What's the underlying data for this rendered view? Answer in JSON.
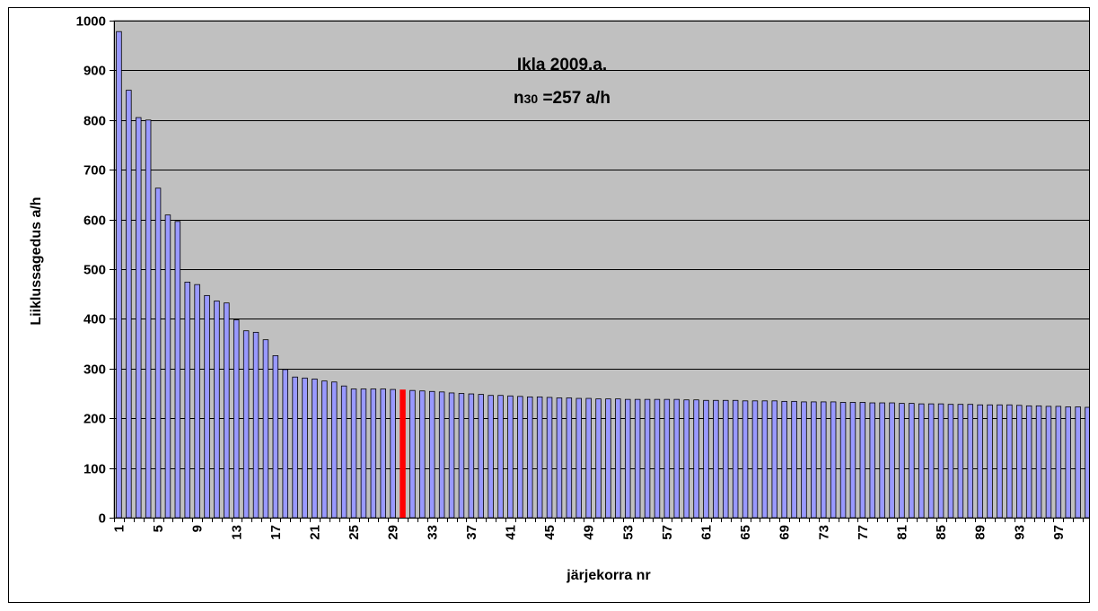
{
  "chart_data": {
    "type": "bar",
    "title": "Ikla 2009.a.",
    "subtitle": {
      "prefix": "n",
      "subscript": "30",
      "text": " =257 a/h"
    },
    "xlabel": "järjekorra nr",
    "ylabel": "Liiklussagedus a/h",
    "ylim": [
      0,
      1000
    ],
    "yticks": [
      0,
      100,
      200,
      300,
      400,
      500,
      600,
      700,
      800,
      900,
      1000
    ],
    "xtick_labels": [
      "1",
      "5",
      "9",
      "13",
      "17",
      "21",
      "25",
      "29",
      "33",
      "37",
      "41",
      "45",
      "49",
      "53",
      "57",
      "61",
      "65",
      "69",
      "73",
      "77",
      "81",
      "85",
      "89",
      "93",
      "97"
    ],
    "grid": true,
    "plot_background": "#c0c0c0",
    "bar_color": "#9999ff",
    "highlight_color": "#ff0000",
    "highlight_index": 30,
    "x": [
      1,
      2,
      3,
      4,
      5,
      6,
      7,
      8,
      9,
      10,
      11,
      12,
      13,
      14,
      15,
      16,
      17,
      18,
      19,
      20,
      21,
      22,
      23,
      24,
      25,
      26,
      27,
      28,
      29,
      30,
      31,
      32,
      33,
      34,
      35,
      36,
      37,
      38,
      39,
      40,
      41,
      42,
      43,
      44,
      45,
      46,
      47,
      48,
      49,
      50,
      51,
      52,
      53,
      54,
      55,
      56,
      57,
      58,
      59,
      60,
      61,
      62,
      63,
      64,
      65,
      66,
      67,
      68,
      69,
      70,
      71,
      72,
      73,
      74,
      75,
      76,
      77,
      78,
      79,
      80,
      81,
      82,
      83,
      84,
      85,
      86,
      87,
      88,
      89,
      90,
      91,
      92,
      93,
      94,
      95,
      96,
      97,
      98,
      99,
      100
    ],
    "values": [
      978,
      860,
      805,
      800,
      663,
      609,
      596,
      474,
      469,
      447,
      436,
      432,
      398,
      376,
      373,
      358,
      326,
      298,
      283,
      281,
      279,
      275,
      273,
      265,
      259,
      259,
      259,
      259,
      258,
      257,
      256,
      255,
      254,
      253,
      251,
      250,
      249,
      248,
      246,
      246,
      245,
      244,
      243,
      243,
      242,
      241,
      241,
      240,
      240,
      239,
      239,
      239,
      238,
      238,
      238,
      238,
      238,
      238,
      237,
      237,
      236,
      236,
      236,
      236,
      235,
      235,
      235,
      235,
      234,
      234,
      233,
      233,
      233,
      233,
      232,
      232,
      232,
      231,
      231,
      231,
      230,
      230,
      229,
      229,
      229,
      228,
      228,
      228,
      227,
      227,
      227,
      227,
      226,
      225,
      225,
      224,
      224,
      223,
      223,
      222
    ]
  }
}
